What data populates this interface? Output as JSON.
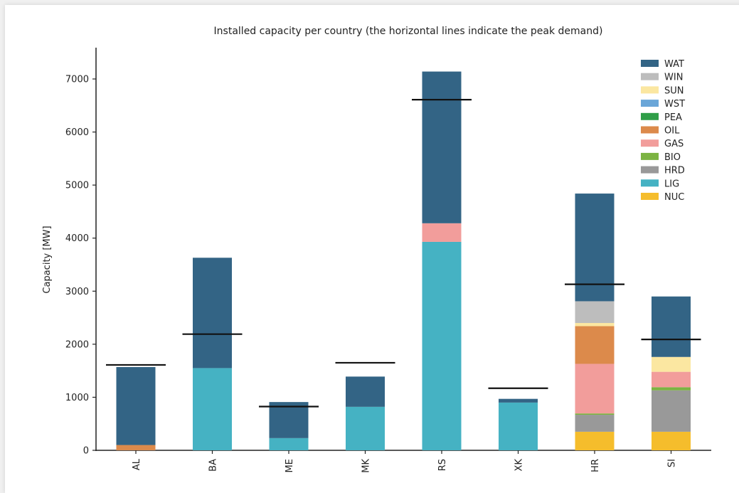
{
  "chart_data": {
    "type": "bar",
    "stacked": true,
    "title": "Installed capacity per country (the horizontal lines indicate the peak demand)",
    "xlabel": "",
    "ylabel": "Capacity [MW]",
    "ylim": [
      0,
      7500
    ],
    "yticks": [
      0,
      1000,
      2000,
      3000,
      4000,
      5000,
      6000,
      7000
    ],
    "grid": false,
    "legend_position": "top-right",
    "categories": [
      "AL",
      "BA",
      "ME",
      "MK",
      "RS",
      "XK",
      "HR",
      "SI"
    ],
    "series": [
      {
        "name": "NUC",
        "color": "#f5bd2c",
        "values": [
          0,
          0,
          0,
          0,
          0,
          0,
          350,
          350
        ]
      },
      {
        "name": "LIG",
        "color": "#45b2c3",
        "values": [
          0,
          1550,
          230,
          820,
          3930,
          900,
          0,
          0
        ]
      },
      {
        "name": "HRD",
        "color": "#999999",
        "values": [
          0,
          0,
          0,
          0,
          0,
          0,
          320,
          780
        ]
      },
      {
        "name": "BIO",
        "color": "#7cb342",
        "values": [
          0,
          0,
          0,
          0,
          0,
          0,
          25,
          60
        ]
      },
      {
        "name": "GAS",
        "color": "#f29d9b",
        "values": [
          0,
          0,
          0,
          0,
          350,
          0,
          935,
          290
        ]
      },
      {
        "name": "OIL",
        "color": "#dc8a4b",
        "values": [
          100,
          0,
          0,
          0,
          0,
          0,
          710,
          0
        ]
      },
      {
        "name": "PEA",
        "color": "#2f9e48",
        "values": [
          0,
          0,
          0,
          0,
          0,
          0,
          0,
          0
        ]
      },
      {
        "name": "WST",
        "color": "#6aa6d8",
        "values": [
          0,
          0,
          0,
          0,
          0,
          0,
          0,
          0
        ]
      },
      {
        "name": "SUN",
        "color": "#fbe7a1",
        "values": [
          0,
          0,
          0,
          0,
          0,
          0,
          60,
          280
        ]
      },
      {
        "name": "WIN",
        "color": "#bdbdbd",
        "values": [
          0,
          0,
          0,
          0,
          0,
          0,
          410,
          0
        ]
      },
      {
        "name": "WAT",
        "color": "#336485",
        "values": [
          1470,
          2080,
          680,
          570,
          2860,
          70,
          2030,
          1140
        ]
      }
    ],
    "peak_demand": [
      1610,
      2190,
      825,
      1650,
      6610,
      1170,
      3130,
      2090
    ]
  }
}
